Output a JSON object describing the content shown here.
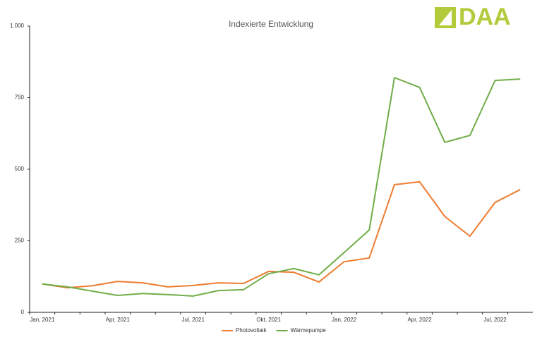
{
  "chart_data": {
    "type": "line",
    "title": "Indexierte Entwicklung",
    "logo": "DAA",
    "categories": [
      "Jan, 2021",
      null,
      null,
      "Apr, 2021",
      null,
      null,
      "Jul, 2021",
      null,
      null,
      "Okt, 2021",
      null,
      null,
      "Jan, 2022",
      null,
      null,
      "Apr, 2022",
      null,
      null,
      "Jul, 2022",
      null
    ],
    "series": [
      {
        "name": "Photovoltaik",
        "color": "#ed7d31",
        "values": [
          99,
          86,
          93,
          108,
          103,
          89,
          94,
          103,
          101,
          143,
          140,
          106,
          177,
          190,
          446,
          456,
          335,
          266,
          384,
          429
        ]
      },
      {
        "name": "Wärmepumpe",
        "color": "#70ad47",
        "values": [
          99,
          89,
          74,
          59,
          66,
          62,
          57,
          76,
          79,
          135,
          153,
          131,
          209,
          288,
          820,
          786,
          594,
          618,
          810,
          815
        ]
      }
    ],
    "ylim": [
      0,
      1000
    ],
    "yticks": [
      0,
      250,
      500,
      750,
      {
        "value": 1000,
        "label": "1.000"
      }
    ],
    "grid": false,
    "legend": "bottom"
  }
}
